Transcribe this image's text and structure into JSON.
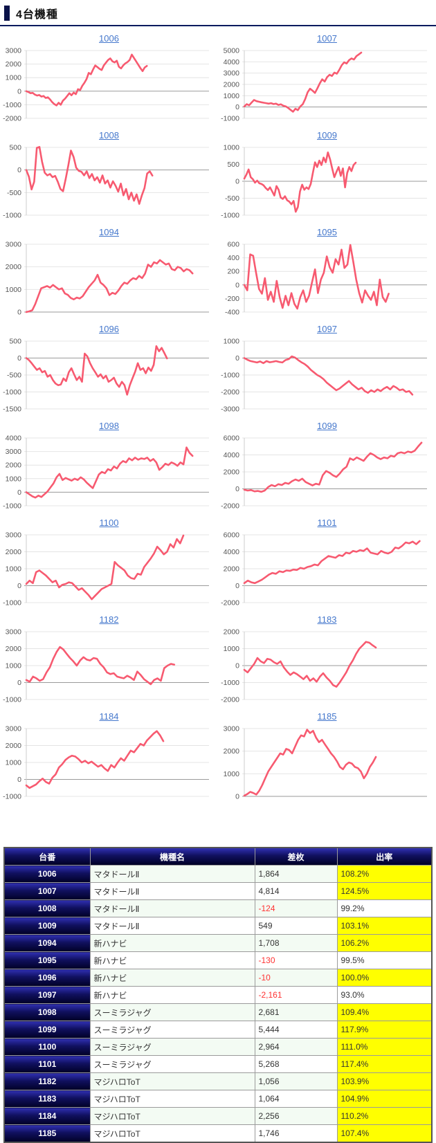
{
  "page": {
    "title_label": "4台機種"
  },
  "colors": {
    "line": "#f75a70",
    "link": "#4477cc",
    "grid": "#e4e4e4",
    "zero_line": "#9a9a9a",
    "axis": "#cccccc",
    "tick_text": "#555555",
    "highlight": "#ffff00",
    "negative": "#ff3232",
    "navy_top": "#3030b2",
    "navy_bottom": "#000026"
  },
  "chart_data": [
    {
      "type": "line",
      "id": "1006",
      "title": "1006",
      "ticks": [
        3000,
        2000,
        1000,
        0,
        -1000,
        -2000
      ],
      "ylim": [
        -2000,
        3000
      ],
      "x_fraction": 0.66,
      "grid": true,
      "values": [
        0,
        -60,
        -150,
        -120,
        -250,
        -320,
        -280,
        -400,
        -350,
        -500,
        -450,
        -600,
        -800,
        -950,
        -1050,
        -850,
        -1000,
        -700,
        -550,
        -350,
        -150,
        -300,
        -100,
        -220,
        150,
        80,
        400,
        620,
        900,
        1350,
        1250,
        1600,
        1900,
        1780,
        1650,
        1560,
        1900,
        2100,
        2300,
        2420,
        2200,
        2120,
        2250,
        1800,
        1680,
        1900,
        2050,
        2150,
        2300,
        2700,
        2450,
        2200,
        1950,
        1700,
        1480,
        1750,
        1864
      ]
    },
    {
      "type": "line",
      "id": "1007",
      "title": "1007",
      "ticks": [
        5000,
        4000,
        3000,
        2000,
        1000,
        0,
        -1000
      ],
      "ylim": [
        -1000,
        5000
      ],
      "x_fraction": 0.64,
      "grid": true,
      "values": [
        50,
        250,
        150,
        400,
        620,
        520,
        470,
        420,
        380,
        340,
        300,
        340,
        260,
        300,
        180,
        240,
        120,
        60,
        -80,
        -250,
        -420,
        -150,
        -280,
        60,
        250,
        700,
        1300,
        1620,
        1450,
        1250,
        1650,
        2100,
        2450,
        2250,
        2650,
        2850,
        2750,
        3050,
        2950,
        3300,
        3700,
        3950,
        3850,
        4150,
        4300,
        4200,
        4500,
        4650,
        4814
      ]
    },
    {
      "type": "line",
      "id": "1008",
      "title": "1008",
      "ticks": [
        500,
        0,
        -500,
        -1000
      ],
      "ylim": [
        -1000,
        500
      ],
      "x_fraction": 0.69,
      "grid": true,
      "values": [
        0,
        -150,
        -430,
        -260,
        490,
        510,
        180,
        -60,
        -120,
        -90,
        -160,
        -130,
        -260,
        -420,
        -470,
        -200,
        100,
        430,
        290,
        50,
        -20,
        -40,
        -120,
        -30,
        -180,
        -90,
        -230,
        -160,
        -280,
        -120,
        -300,
        -230,
        -390,
        -250,
        -350,
        -480,
        -300,
        -560,
        -420,
        -650,
        -500,
        -680,
        -540,
        -750,
        -560,
        -400,
        -80,
        -30,
        -124
      ]
    },
    {
      "type": "line",
      "id": "1009",
      "title": "1009",
      "ticks": [
        1000,
        500,
        0,
        -500,
        -1000
      ],
      "ylim": [
        -1000,
        1000
      ],
      "x_fraction": 0.61,
      "grid": true,
      "values": [
        80,
        200,
        350,
        120,
        60,
        -40,
        20,
        -60,
        -80,
        -120,
        -200,
        -260,
        -180,
        -300,
        -420,
        -140,
        -250,
        -480,
        -520,
        -440,
        -560,
        -600,
        -680,
        -580,
        -900,
        -760,
        -300,
        -100,
        -250,
        -180,
        -230,
        -80,
        250,
        560,
        420,
        610,
        480,
        700,
        560,
        850,
        650,
        380,
        120,
        280,
        420,
        160,
        380,
        -180,
        250,
        420,
        300,
        480,
        549
      ]
    },
    {
      "type": "line",
      "id": "1094",
      "title": "1094",
      "ticks": [
        3000,
        2000,
        1000,
        0
      ],
      "ylim": [
        0,
        3000
      ],
      "x_fraction": 0.91,
      "grid": true,
      "values": [
        0,
        30,
        80,
        350,
        700,
        1050,
        1100,
        1150,
        1080,
        1200,
        1100,
        1000,
        1050,
        820,
        760,
        620,
        560,
        640,
        600,
        700,
        900,
        1100,
        1250,
        1400,
        1650,
        1300,
        1200,
        1050,
        750,
        850,
        800,
        950,
        1150,
        1300,
        1250,
        1400,
        1500,
        1450,
        1600,
        1500,
        1700,
        2100,
        2000,
        2200,
        2150,
        2300,
        2200,
        2100,
        2150,
        1900,
        1850,
        2000,
        1950,
        1800,
        1900,
        1850,
        1708
      ]
    },
    {
      "type": "line",
      "id": "1095",
      "title": "1095",
      "ticks": [
        600,
        400,
        200,
        0,
        -200,
        -400
      ],
      "ylim": [
        -400,
        600
      ],
      "x_fraction": 0.79,
      "grid": true,
      "values": [
        0,
        -80,
        450,
        430,
        180,
        -60,
        -130,
        100,
        -220,
        -100,
        -250,
        60,
        -180,
        -340,
        -160,
        -300,
        -120,
        -280,
        -350,
        -180,
        -80,
        -250,
        -160,
        40,
        230,
        -120,
        80,
        180,
        420,
        260,
        180,
        380,
        300,
        520,
        250,
        300,
        590,
        340,
        80,
        -120,
        -260,
        -80,
        -160,
        -220,
        -100,
        -300,
        80,
        -180,
        -250,
        -130
      ]
    },
    {
      "type": "line",
      "id": "1096",
      "title": "1096",
      "ticks": [
        500,
        0,
        -500,
        -1000,
        -1500
      ],
      "ylim": [
        -1500,
        500
      ],
      "x_fraction": 0.77,
      "grid": true,
      "values": [
        0,
        -60,
        -150,
        -250,
        -350,
        -300,
        -420,
        -380,
        -550,
        -500,
        -650,
        -750,
        -800,
        -780,
        -600,
        -680,
        -420,
        -300,
        -480,
        -650,
        -550,
        -700,
        130,
        50,
        -150,
        -300,
        -420,
        -550,
        -480,
        -600,
        -520,
        -700,
        -650,
        -580,
        -750,
        -850,
        -700,
        -800,
        -1080,
        -800,
        -600,
        -400,
        -150,
        -350,
        -300,
        -450,
        -280,
        -380,
        -200,
        350,
        200,
        300,
        150,
        -10
      ]
    },
    {
      "type": "line",
      "id": "1097",
      "title": "1097",
      "ticks": [
        1000,
        0,
        -1000,
        -2000,
        -3000
      ],
      "ylim": [
        -3000,
        1000
      ],
      "x_fraction": 0.92,
      "grid": true,
      "values": [
        0,
        -100,
        -180,
        -220,
        -260,
        -200,
        -300,
        -180,
        -250,
        -220,
        -180,
        -230,
        -260,
        -120,
        -60,
        100,
        30,
        -120,
        -250,
        -350,
        -500,
        -700,
        -850,
        -1000,
        -1100,
        -1250,
        -1450,
        -1600,
        -1750,
        -1900,
        -1800,
        -1650,
        -1500,
        -1350,
        -1550,
        -1700,
        -1850,
        -1750,
        -1950,
        -2050,
        -1900,
        -2000,
        -1850,
        -1950,
        -1800,
        -1700,
        -1850,
        -1650,
        -1750,
        -1900,
        -1850,
        -2000,
        -1950,
        -2161
      ]
    },
    {
      "type": "line",
      "id": "1098",
      "title": "1098",
      "ticks": [
        4000,
        3000,
        2000,
        1000,
        0,
        -1000
      ],
      "ylim": [
        -1000,
        4000
      ],
      "x_fraction": 0.91,
      "grid": true,
      "values": [
        0,
        -150,
        -300,
        -400,
        -250,
        -350,
        -150,
        50,
        350,
        650,
        1100,
        1350,
        900,
        1050,
        950,
        850,
        1000,
        900,
        1100,
        950,
        700,
        500,
        300,
        800,
        1300,
        1500,
        1400,
        1700,
        1600,
        1900,
        1750,
        2100,
        2300,
        2200,
        2500,
        2350,
        2550,
        2400,
        2500,
        2450,
        2550,
        2300,
        2450,
        2200,
        1650,
        1850,
        2100,
        2000,
        2200,
        2100,
        1950,
        2200,
        2050,
        3300,
        2900,
        2681
      ]
    },
    {
      "type": "line",
      "id": "1099",
      "title": "1099",
      "ticks": [
        6000,
        4000,
        2000,
        0,
        -2000
      ],
      "ylim": [
        -2000,
        6000
      ],
      "x_fraction": 0.97,
      "grid": true,
      "values": [
        -100,
        -200,
        -150,
        -300,
        -250,
        -350,
        -200,
        200,
        450,
        300,
        550,
        450,
        700,
        600,
        900,
        1100,
        950,
        1200,
        800,
        600,
        400,
        600,
        500,
        1600,
        2100,
        1900,
        1600,
        1400,
        1800,
        2300,
        2600,
        3600,
        3400,
        3700,
        3500,
        3300,
        3800,
        4200,
        4000,
        3700,
        3500,
        3700,
        3600,
        3900,
        3800,
        4200,
        4300,
        4200,
        4400,
        4300,
        4500,
        5000,
        5444
      ]
    },
    {
      "type": "line",
      "id": "1100",
      "title": "1100",
      "ticks": [
        3000,
        2000,
        1000,
        0,
        -1000
      ],
      "ylim": [
        -1000,
        3000
      ],
      "x_fraction": 0.86,
      "grid": true,
      "values": [
        100,
        300,
        150,
        800,
        900,
        750,
        600,
        400,
        200,
        300,
        -100,
        50,
        100,
        200,
        150,
        -50,
        -250,
        -150,
        -350,
        -550,
        -800,
        -600,
        -400,
        -200,
        -100,
        0,
        100,
        1400,
        1200,
        1050,
        900,
        600,
        450,
        400,
        700,
        650,
        1100,
        1350,
        1600,
        1900,
        2300,
        2100,
        1850,
        2000,
        2450,
        2250,
        2750,
        2500,
        2964
      ]
    },
    {
      "type": "line",
      "id": "1101",
      "title": "1101",
      "ticks": [
        6000,
        4000,
        2000,
        0,
        -2000
      ],
      "ylim": [
        -2000,
        6000
      ],
      "x_fraction": 0.96,
      "grid": true,
      "values": [
        300,
        600,
        400,
        300,
        500,
        700,
        1000,
        1300,
        1500,
        1400,
        1700,
        1600,
        1800,
        1750,
        1900,
        1850,
        2100,
        2000,
        2200,
        2300,
        2500,
        2400,
        2900,
        3200,
        3500,
        3400,
        3300,
        3600,
        3500,
        3900,
        3800,
        4100,
        4000,
        4200,
        4100,
        4400,
        3900,
        3800,
        3700,
        4100,
        3900,
        3800,
        4000,
        4500,
        4400,
        4700,
        5100,
        5000,
        5200,
        4900,
        5268
      ]
    },
    {
      "type": "line",
      "id": "1182",
      "title": "1182",
      "ticks": [
        3000,
        2000,
        1000,
        0,
        -1000
      ],
      "ylim": [
        -1000,
        3000
      ],
      "x_fraction": 0.81,
      "grid": true,
      "values": [
        150,
        50,
        350,
        250,
        100,
        200,
        600,
        900,
        1400,
        1800,
        2100,
        1950,
        1700,
        1450,
        1250,
        1000,
        1300,
        1500,
        1350,
        1300,
        1450,
        1400,
        1100,
        900,
        600,
        500,
        550,
        350,
        300,
        250,
        400,
        300,
        150,
        650,
        450,
        200,
        50,
        -100,
        150,
        250,
        100,
        850,
        1000,
        1100,
        1056
      ]
    },
    {
      "type": "line",
      "id": "1183",
      "title": "1183",
      "ticks": [
        2000,
        1000,
        0,
        -1000,
        -2000
      ],
      "ylim": [
        -2000,
        2000
      ],
      "x_fraction": 0.72,
      "grid": true,
      "values": [
        -250,
        -400,
        -150,
        100,
        450,
        250,
        150,
        400,
        350,
        200,
        100,
        250,
        -100,
        -350,
        -550,
        -400,
        -500,
        -650,
        -800,
        -600,
        -900,
        -750,
        -950,
        -650,
        -450,
        -700,
        -900,
        -1150,
        -1250,
        -1000,
        -700,
        -400,
        0,
        300,
        700,
        1000,
        1200,
        1400,
        1350,
        1200,
        1064
      ]
    },
    {
      "type": "line",
      "id": "1184",
      "title": "1184",
      "ticks": [
        3000,
        2000,
        1000,
        0,
        -1000
      ],
      "ylim": [
        -1000,
        3000
      ],
      "x_fraction": 0.75,
      "grid": true,
      "values": [
        -350,
        -500,
        -400,
        -300,
        -100,
        50,
        -150,
        -250,
        100,
        300,
        700,
        900,
        1150,
        1300,
        1400,
        1350,
        1200,
        1000,
        1100,
        950,
        1050,
        900,
        750,
        850,
        650,
        500,
        850,
        700,
        1000,
        1250,
        1100,
        1400,
        1700,
        1600,
        1850,
        2100,
        2000,
        2300,
        2500,
        2700,
        2850,
        2600,
        2256
      ]
    },
    {
      "type": "line",
      "id": "1185",
      "title": "1185",
      "ticks": [
        3000,
        2000,
        1000,
        0
      ],
      "ylim": [
        0,
        3000
      ],
      "x_fraction": 0.72,
      "grid": true,
      "values": [
        30,
        100,
        200,
        150,
        80,
        250,
        500,
        800,
        1100,
        1300,
        1500,
        1700,
        1900,
        1850,
        2100,
        2050,
        1900,
        2200,
        2500,
        2700,
        2650,
        2950,
        2800,
        2900,
        2600,
        2400,
        2500,
        2300,
        2100,
        1900,
        1750,
        1550,
        1300,
        1200,
        1400,
        1500,
        1450,
        1300,
        1250,
        1100,
        800,
        1000,
        1300,
        1500,
        1746
      ]
    }
  ],
  "table": {
    "headers": [
      "台番",
      "機種名",
      "差枚",
      "出率"
    ],
    "rows": [
      {
        "no": "1006",
        "name": "マタドールⅡ",
        "diff": "1,864",
        "negative": false,
        "rate": "108.2%",
        "highlight": true
      },
      {
        "no": "1007",
        "name": "マタドールⅡ",
        "diff": "4,814",
        "negative": false,
        "rate": "124.5%",
        "highlight": true
      },
      {
        "no": "1008",
        "name": "マタドールⅡ",
        "diff": "-124",
        "negative": true,
        "rate": "99.2%",
        "highlight": false
      },
      {
        "no": "1009",
        "name": "マタドールⅡ",
        "diff": "549",
        "negative": false,
        "rate": "103.1%",
        "highlight": true
      },
      {
        "no": "1094",
        "name": "新ハナビ",
        "diff": "1,708",
        "negative": false,
        "rate": "106.2%",
        "highlight": true
      },
      {
        "no": "1095",
        "name": "新ハナビ",
        "diff": "-130",
        "negative": true,
        "rate": "99.5%",
        "highlight": false
      },
      {
        "no": "1096",
        "name": "新ハナビ",
        "diff": "-10",
        "negative": true,
        "rate": "100.0%",
        "highlight": true
      },
      {
        "no": "1097",
        "name": "新ハナビ",
        "diff": "-2,161",
        "negative": true,
        "rate": "93.0%",
        "highlight": false
      },
      {
        "no": "1098",
        "name": "スーミラジャグ",
        "diff": "2,681",
        "negative": false,
        "rate": "109.4%",
        "highlight": true
      },
      {
        "no": "1099",
        "name": "スーミラジャグ",
        "diff": "5,444",
        "negative": false,
        "rate": "117.9%",
        "highlight": true
      },
      {
        "no": "1100",
        "name": "スーミラジャグ",
        "diff": "2,964",
        "negative": false,
        "rate": "111.0%",
        "highlight": true
      },
      {
        "no": "1101",
        "name": "スーミラジャグ",
        "diff": "5,268",
        "negative": false,
        "rate": "117.4%",
        "highlight": true
      },
      {
        "no": "1182",
        "name": "マジハロToT",
        "diff": "1,056",
        "negative": false,
        "rate": "103.9%",
        "highlight": true
      },
      {
        "no": "1183",
        "name": "マジハロToT",
        "diff": "1,064",
        "negative": false,
        "rate": "104.9%",
        "highlight": true
      },
      {
        "no": "1184",
        "name": "マジハロToT",
        "diff": "2,256",
        "negative": false,
        "rate": "110.2%",
        "highlight": true
      },
      {
        "no": "1185",
        "name": "マジハロToT",
        "diff": "1,746",
        "negative": false,
        "rate": "107.4%",
        "highlight": true
      }
    ]
  }
}
